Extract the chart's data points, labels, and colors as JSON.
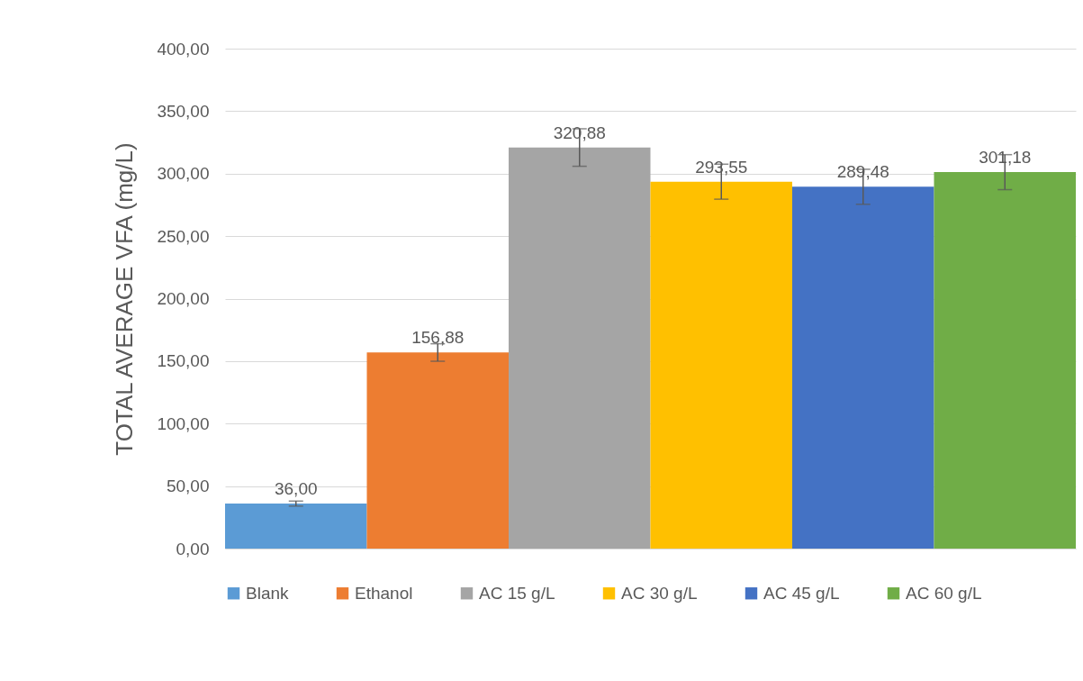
{
  "chart_data": {
    "type": "bar",
    "ylabel": "TOTAL AVERAGE VFA (mg/L)",
    "categories": [
      null
    ],
    "series": [
      {
        "name": "Blank",
        "color": "#5b9bd5",
        "values": [
          36.0
        ],
        "errors": [
          2
        ],
        "value_labels": [
          "36,00"
        ]
      },
      {
        "name": "Ethanol",
        "color": "#ed7d31",
        "values": [
          156.88
        ],
        "errors": [
          7
        ],
        "value_labels": [
          "156,88"
        ]
      },
      {
        "name": "AC 15 g/L",
        "color": "#a5a5a5",
        "values": [
          320.88
        ],
        "errors": [
          15
        ],
        "value_labels": [
          "320,88"
        ]
      },
      {
        "name": "AC 30 g/L",
        "color": "#ffc000",
        "values": [
          293.55
        ],
        "errors": [
          14
        ],
        "value_labels": [
          "293,55"
        ]
      },
      {
        "name": "AC 45 g/L",
        "color": "#4472c4",
        "values": [
          289.48
        ],
        "errors": [
          14
        ],
        "value_labels": [
          "289,48"
        ]
      },
      {
        "name": "AC 60 g/L",
        "color": "#70ad47",
        "values": [
          301.18
        ],
        "errors": [
          14
        ],
        "value_labels": [
          "301,18"
        ]
      }
    ],
    "ylim": [
      0,
      400
    ],
    "yticks": [
      {
        "value": 0,
        "label": "0,00"
      },
      {
        "value": 50,
        "label": "50,00"
      },
      {
        "value": 100,
        "label": "100,00"
      },
      {
        "value": 150,
        "label": "150,00"
      },
      {
        "value": 200,
        "label": "200,00"
      },
      {
        "value": 250,
        "label": "250,00"
      },
      {
        "value": 300,
        "label": "300,00"
      },
      {
        "value": 350,
        "label": "350,00"
      },
      {
        "value": 400,
        "label": "400,00"
      }
    ],
    "grid": "y",
    "legend": "bottom",
    "tick_labels": "y"
  }
}
